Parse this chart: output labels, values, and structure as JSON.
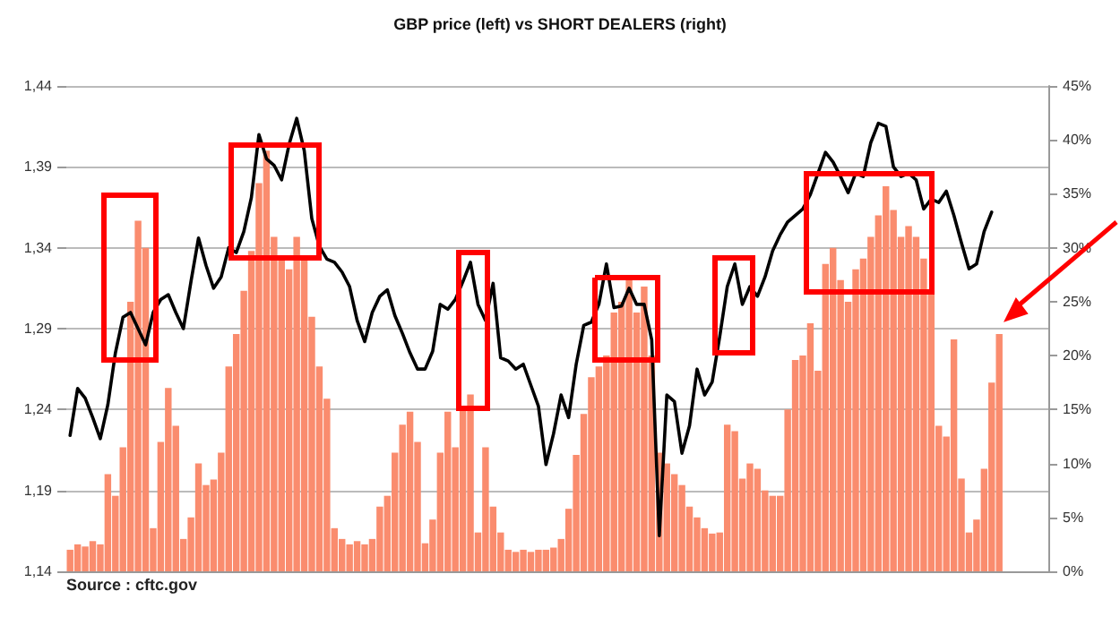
{
  "chart_data": {
    "type": "bar",
    "title": "GBP price (left) vs SHORT DEALERS (right)",
    "annotations": [
      "Source : cftc.gov"
    ],
    "categories": [
      null,
      null,
      null,
      null,
      null,
      null,
      null,
      null,
      null,
      null,
      null,
      null,
      null,
      null,
      null,
      null,
      null,
      null,
      null,
      null,
      null,
      null,
      null,
      null,
      null,
      null,
      null,
      null,
      null,
      null,
      null,
      null,
      null,
      null,
      null,
      null,
      null,
      null,
      null,
      null,
      null,
      null,
      null,
      null,
      null,
      null,
      null,
      null,
      null,
      null,
      null,
      null,
      null,
      null,
      null,
      null,
      null,
      null,
      null,
      null,
      null,
      null,
      null,
      null,
      null,
      null,
      null,
      null,
      null,
      null,
      null,
      null,
      null,
      null,
      null,
      null,
      null,
      null,
      null,
      null,
      null,
      null,
      null,
      null,
      null,
      null,
      null,
      null,
      null,
      null,
      null,
      null,
      null,
      null,
      null,
      null,
      null,
      null,
      null,
      null,
      null,
      null,
      null,
      null,
      null,
      null,
      null,
      null,
      null,
      null,
      null,
      null,
      null,
      null,
      null,
      null,
      null,
      null,
      null,
      null,
      null,
      null,
      null,
      null,
      null,
      null,
      null,
      null,
      null,
      null
    ],
    "series": [
      {
        "axis": "y2",
        "color": "#fa8c6e",
        "values": [
          2,
          2.5,
          2.3,
          2.8,
          2.5,
          9,
          7,
          11.5,
          25,
          32.5,
          30,
          4,
          12,
          17,
          13.5,
          3,
          5,
          10,
          8,
          8.5,
          11,
          19,
          22,
          26,
          29.7,
          36,
          39,
          31,
          29,
          28,
          31,
          29,
          23.6,
          19,
          16,
          4,
          3,
          2.5,
          2.8,
          2.5,
          3,
          6,
          7,
          11,
          13.6,
          14.8,
          12,
          2.6,
          4.8,
          11,
          14.8,
          11.5,
          15,
          16.4,
          3.6,
          11.5,
          6,
          3.6,
          2,
          1.8,
          2,
          1.8,
          2,
          2,
          2.2,
          3,
          5.8,
          10.8,
          14.6,
          18,
          19,
          20,
          24,
          25,
          27,
          24,
          26.4,
          20,
          11,
          10,
          9,
          8,
          6,
          5,
          4,
          3.5,
          3.6,
          13.6,
          13,
          8.6,
          10,
          9.5,
          7.5,
          7,
          7,
          15,
          19.6,
          20,
          23,
          18.6,
          28.5,
          30,
          27,
          25,
          28,
          29,
          31,
          33,
          35.7,
          33.5,
          31,
          32,
          31,
          29,
          26,
          13.5,
          12.5,
          21.5,
          8.6,
          3.6,
          4.8,
          9.5,
          17.5,
          22,
          null,
          null,
          null,
          null,
          null,
          null
        ]
      },
      {
        "type": "line",
        "color": "#000000",
        "values": [
          1.224,
          1.253,
          1.247,
          1.235,
          1.222,
          1.243,
          1.275,
          1.297,
          1.3,
          1.29,
          1.28,
          1.3,
          1.308,
          1.311,
          1.3,
          1.29,
          1.319,
          1.346,
          1.329,
          1.315,
          1.322,
          1.34,
          1.337,
          1.35,
          1.371,
          1.41,
          1.395,
          1.391,
          1.382,
          1.404,
          1.42,
          1.4,
          1.358,
          1.341,
          1.333,
          1.331,
          1.325,
          1.316,
          1.295,
          1.282,
          1.3,
          1.31,
          1.314,
          1.298,
          1.287,
          1.275,
          1.265,
          1.265,
          1.276,
          1.305,
          1.302,
          1.308,
          1.319,
          1.331,
          1.305,
          1.295,
          1.318,
          1.272,
          1.27,
          1.265,
          1.268,
          1.255,
          1.242,
          1.206,
          1.225,
          1.249,
          1.235,
          1.268,
          1.292,
          1.294,
          1.305,
          1.33,
          1.303,
          1.304,
          1.315,
          1.305,
          1.305,
          1.283,
          1.162,
          1.249,
          1.245,
          1.213,
          1.23,
          1.265,
          1.249,
          1.257,
          1.285,
          1.316,
          1.33,
          1.305,
          1.316,
          1.31,
          1.322,
          1.338,
          1.348,
          1.356,
          1.36,
          1.364,
          1.373,
          1.386,
          1.399,
          1.393,
          1.384,
          1.374,
          1.386,
          1.384,
          1.405,
          1.417,
          1.415,
          1.39,
          1.384,
          1.386,
          1.382,
          1.364,
          1.37,
          1.368,
          1.375,
          1.36,
          1.343,
          1.327,
          1.33,
          1.35,
          1.362,
          null,
          null,
          null,
          null,
          null,
          null,
          null
        ]
      }
    ],
    "ylim": [
      1.14,
      1.44
    ],
    "yticks": [
      {
        "value": 1.14,
        "label": "1,14"
      },
      {
        "value": 1.19,
        "label": "1,19"
      },
      {
        "value": 1.24,
        "label": "1,24"
      },
      {
        "value": 1.29,
        "label": "1,29"
      },
      {
        "value": 1.34,
        "label": "1,34"
      },
      {
        "value": 1.39,
        "label": "1,39"
      },
      {
        "value": 1.44,
        "label": "1,44"
      }
    ],
    "y2lim": [
      0,
      45
    ],
    "y2ticks": [
      {
        "value": 0,
        "label": "0%"
      },
      {
        "value": 5,
        "label": "5%"
      },
      {
        "value": 10,
        "label": "10%"
      },
      {
        "value": 15,
        "label": "15%"
      },
      {
        "value": 20,
        "label": "20%"
      },
      {
        "value": 25,
        "label": "25%"
      },
      {
        "value": 30,
        "label": "30%"
      },
      {
        "value": 35,
        "label": "35%"
      },
      {
        "value": 40,
        "label": "40%"
      },
      {
        "value": 45,
        "label": "45%"
      }
    ],
    "grid": "y",
    "marker": "none",
    "line_style": "solid"
  }
}
